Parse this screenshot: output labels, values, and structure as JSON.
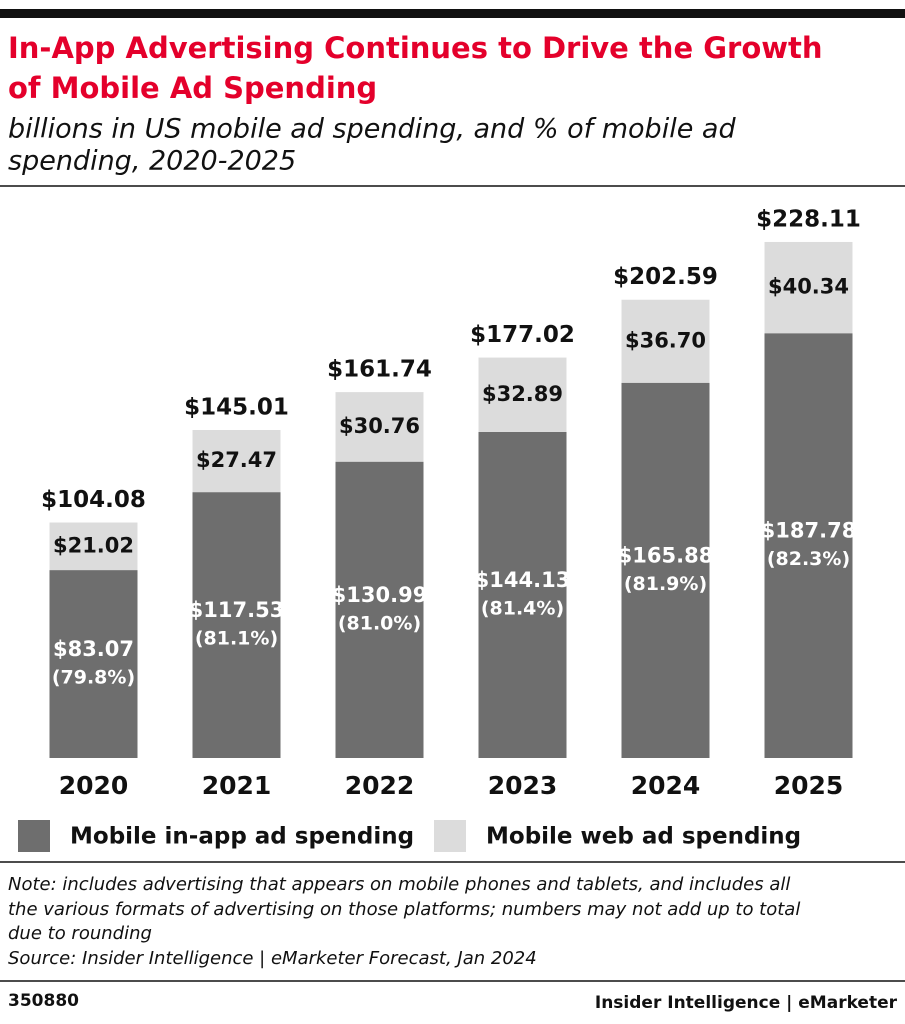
{
  "chart_data": {
    "type": "stacked_bar",
    "title": [
      "In-App Advertising Continues to Drive the Growth",
      "of Mobile Ad Spending"
    ],
    "subtitle": [
      "billions in US mobile ad spending, and % of mobile ad",
      "spending, 2020-2025"
    ],
    "categories": [
      "2020",
      "2021",
      "2022",
      "2023",
      "2024",
      "2025"
    ],
    "series": [
      {
        "name": "Mobile in-app ad spending",
        "color": "#6e6e6e",
        "values": [
          83.07,
          117.53,
          130.99,
          144.13,
          165.88,
          187.78
        ],
        "value_labels": [
          "$83.07",
          "$117.53",
          "$130.99",
          "$144.13",
          "$165.88",
          "$187.78"
        ],
        "share_labels": [
          "(79.8%)",
          "(81.1%)",
          "(81.0%)",
          "(81.4%)",
          "(81.9%)",
          "(82.3%)"
        ]
      },
      {
        "name": "Mobile web ad spending",
        "color": "#dcdcdc",
        "values": [
          21.02,
          27.47,
          30.76,
          32.89,
          36.7,
          40.34
        ],
        "value_labels": [
          "$21.02",
          "$27.47",
          "$30.76",
          "$32.89",
          "$36.70",
          "$40.34"
        ]
      }
    ],
    "totals": [
      104.08,
      145.01,
      161.74,
      177.02,
      202.59,
      228.11
    ],
    "total_labels": [
      "$104.08",
      "$145.01",
      "$161.74",
      "$177.02",
      "$202.59",
      "$228.11"
    ],
    "note": [
      "Note: includes advertising that appears on mobile phones and tablets, and includes all",
      "the various formats of advertising on those platforms; numbers may not add up to total",
      "due to rounding"
    ],
    "source": "Source: Insider Intelligence | eMarketer Forecast, Jan 2024",
    "chart_id": "350880",
    "brand": "Insider Intelligence | eMarketer"
  }
}
